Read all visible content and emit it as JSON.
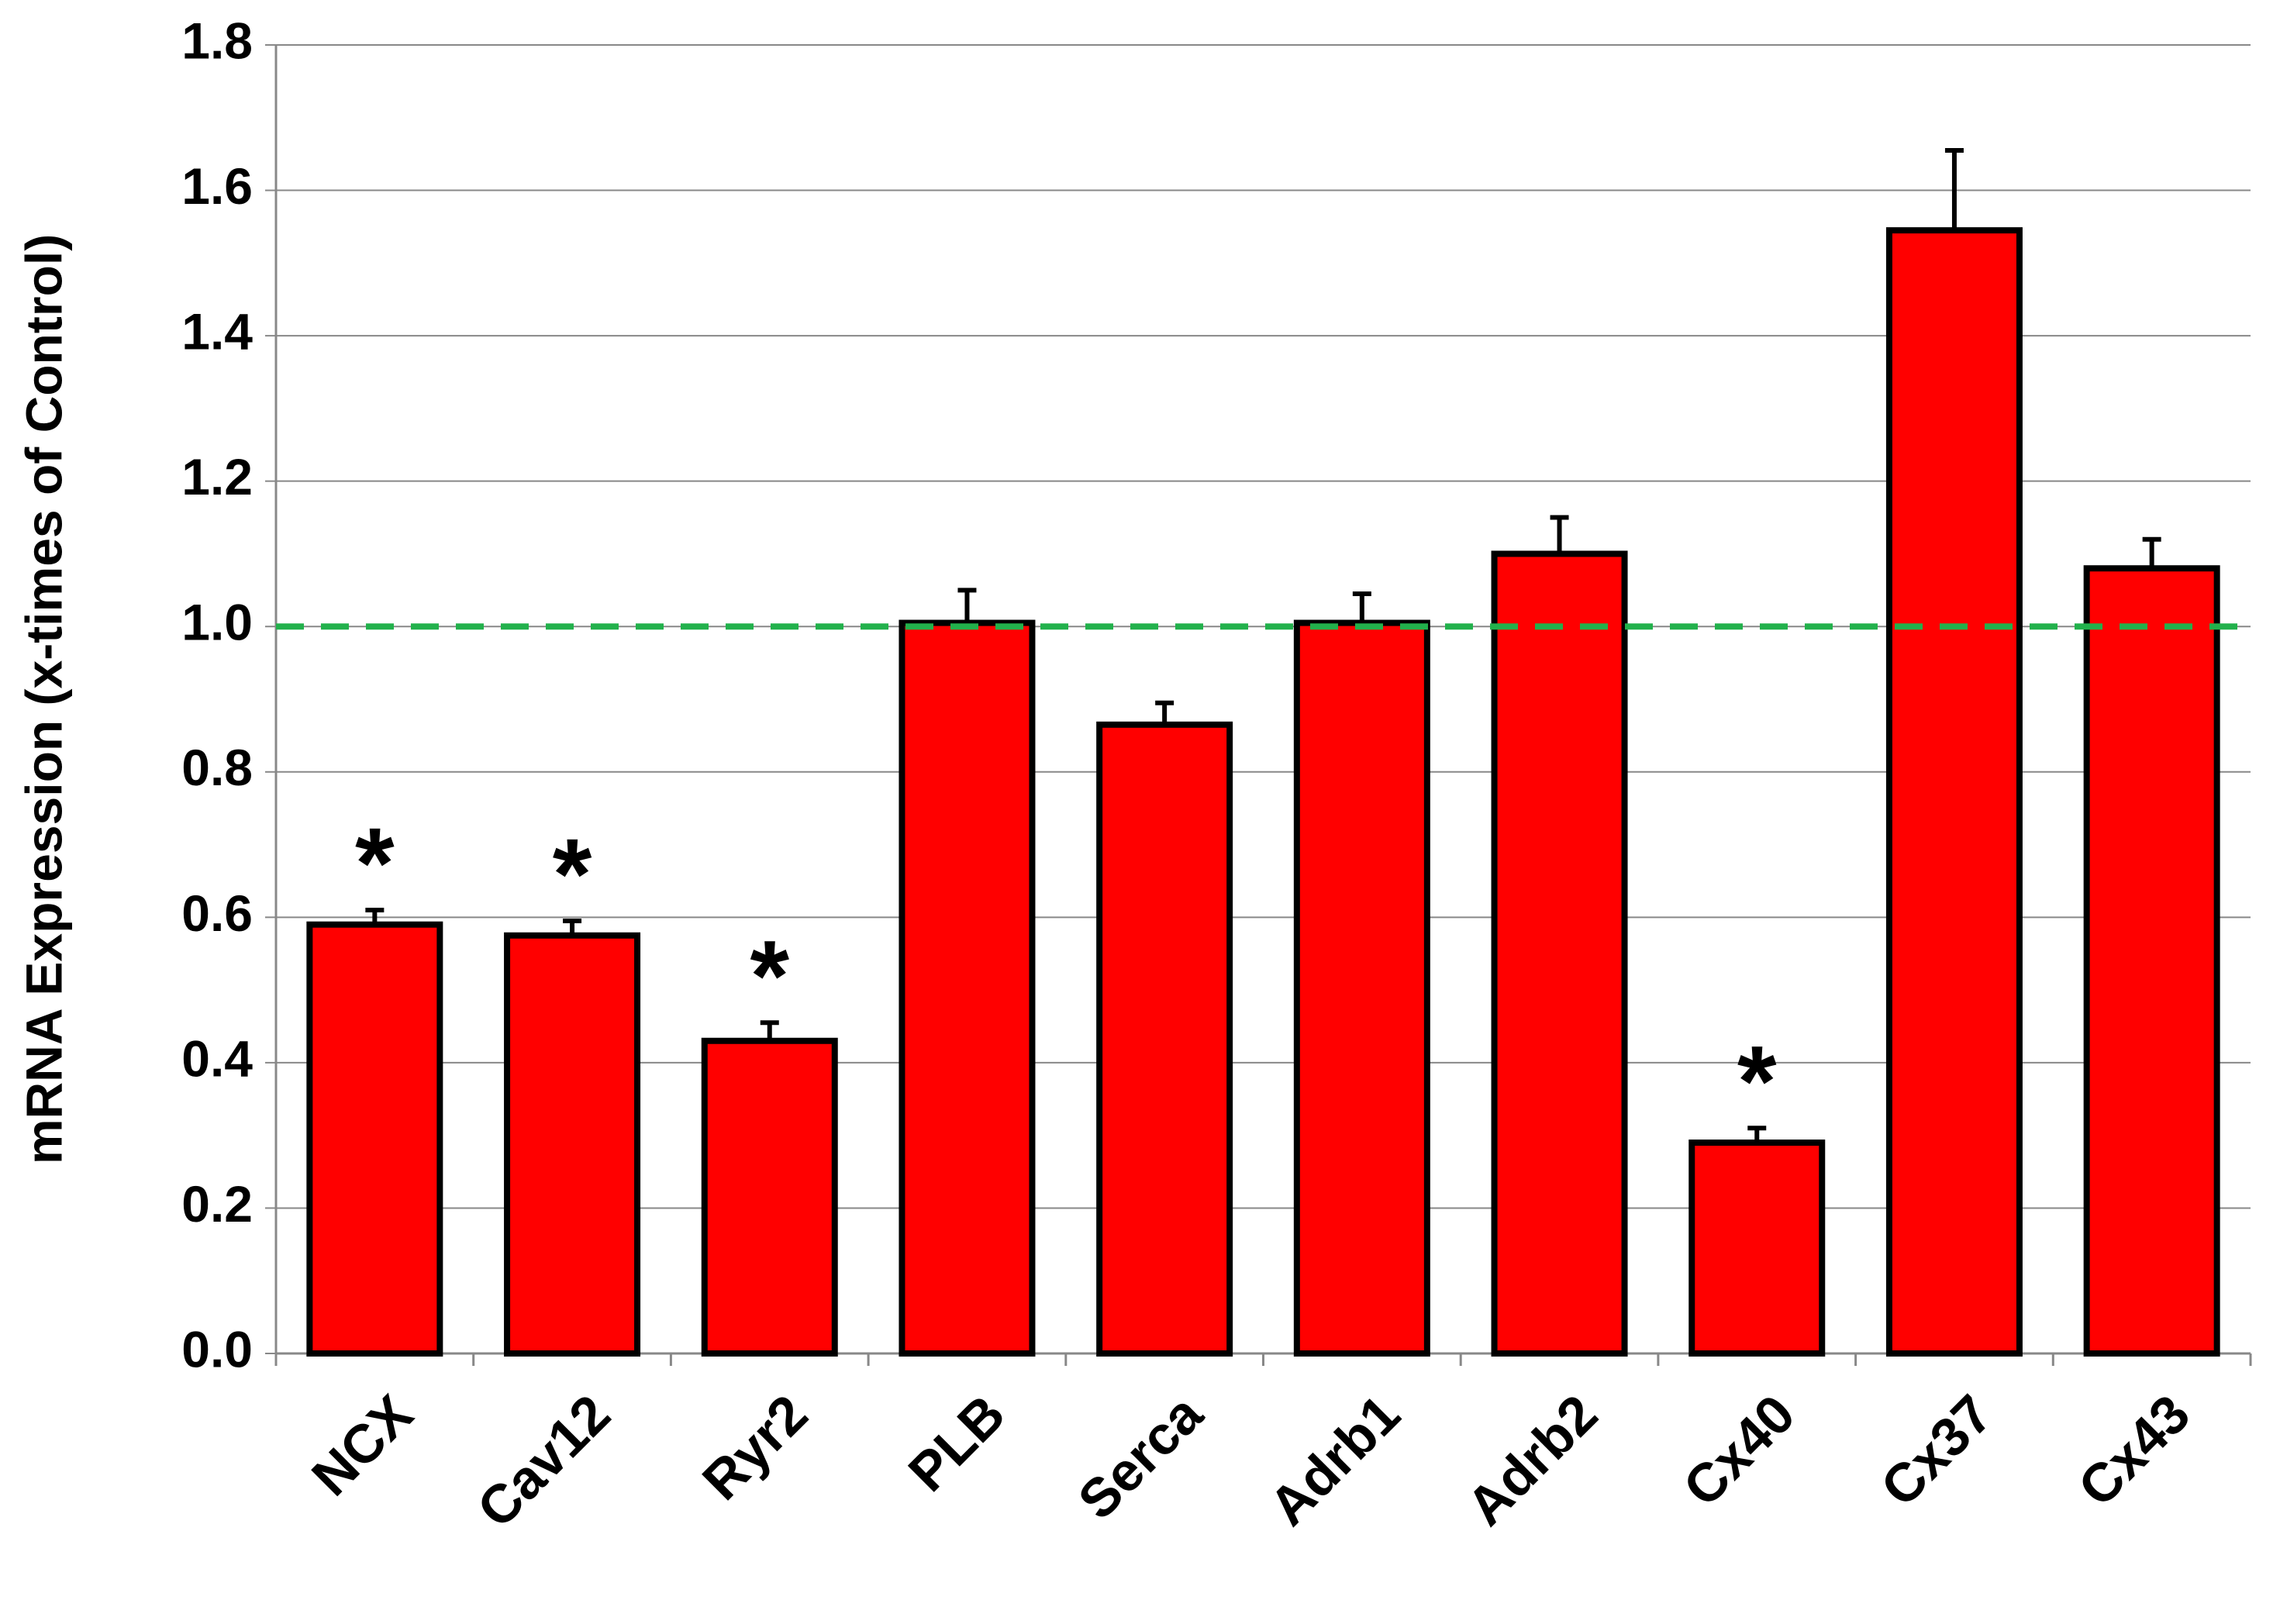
{
  "chart_data": {
    "type": "bar",
    "y_label": "mRNA Expression (x-times of Control)",
    "categories": [
      "NCX",
      "Cav12",
      "Ryr2",
      "PLB",
      "Serca",
      "Adrb1",
      "Adrb2",
      "Cx40",
      "Cx37",
      "Cx43"
    ],
    "values": [
      0.59,
      0.575,
      0.43,
      1.005,
      0.865,
      1.005,
      1.1,
      0.29,
      1.545,
      1.08
    ],
    "errors": [
      0.02,
      0.02,
      0.025,
      0.045,
      0.03,
      0.04,
      0.05,
      0.02,
      0.11,
      0.04
    ],
    "significance": [
      "*",
      "*",
      "*",
      null,
      null,
      null,
      null,
      "*",
      null,
      null
    ],
    "color": "#ff0000",
    "reference_line": {
      "value": 1.0,
      "color": "#22b14c"
    },
    "ylim": [
      0,
      1.8
    ],
    "yticks": [
      {
        "value": 0,
        "label": "0.0"
      },
      0.2,
      0.4,
      0.6,
      0.8,
      {
        "value": 1,
        "label": "1.0"
      },
      1.2,
      1.4,
      1.6,
      1.8
    ],
    "grid": true
  }
}
